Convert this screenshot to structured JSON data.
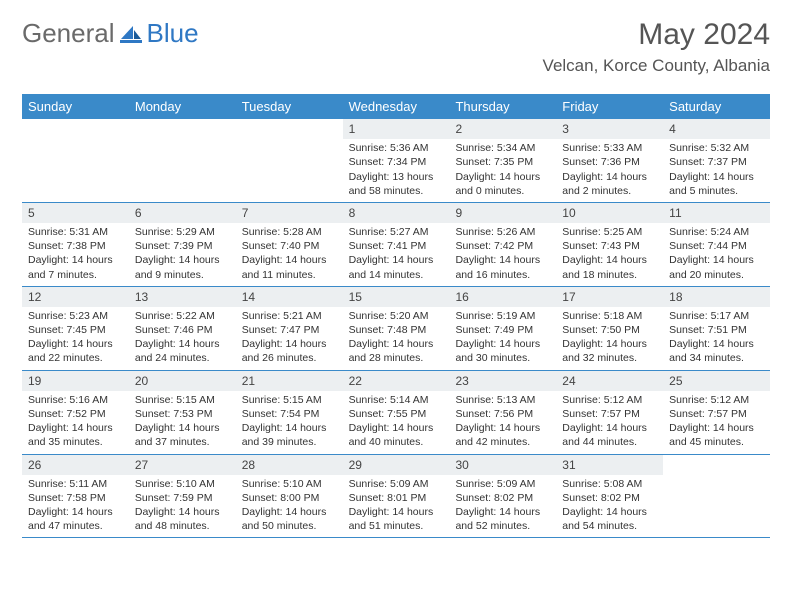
{
  "logo": {
    "general": "General",
    "blue": "Blue"
  },
  "header": {
    "title": "May 2024",
    "location": "Velcan, Korce County, Albania"
  },
  "colors": {
    "header_bg": "#3a8ac9",
    "header_text": "#ffffff",
    "daynum_bg": "#eceff1",
    "text": "#333333",
    "title_text": "#555555",
    "logo_gray": "#6a6a6a",
    "logo_blue": "#2f78c4",
    "divider": "#3a8ac9",
    "page_bg": "#ffffff"
  },
  "weekdays": [
    "Sunday",
    "Monday",
    "Tuesday",
    "Wednesday",
    "Thursday",
    "Friday",
    "Saturday"
  ],
  "weeks": [
    [
      {
        "n": "",
        "sr": "",
        "ss": "",
        "dl": ""
      },
      {
        "n": "",
        "sr": "",
        "ss": "",
        "dl": ""
      },
      {
        "n": "",
        "sr": "",
        "ss": "",
        "dl": ""
      },
      {
        "n": "1",
        "sr": "Sunrise: 5:36 AM",
        "ss": "Sunset: 7:34 PM",
        "dl": "Daylight: 13 hours and 58 minutes."
      },
      {
        "n": "2",
        "sr": "Sunrise: 5:34 AM",
        "ss": "Sunset: 7:35 PM",
        "dl": "Daylight: 14 hours and 0 minutes."
      },
      {
        "n": "3",
        "sr": "Sunrise: 5:33 AM",
        "ss": "Sunset: 7:36 PM",
        "dl": "Daylight: 14 hours and 2 minutes."
      },
      {
        "n": "4",
        "sr": "Sunrise: 5:32 AM",
        "ss": "Sunset: 7:37 PM",
        "dl": "Daylight: 14 hours and 5 minutes."
      }
    ],
    [
      {
        "n": "5",
        "sr": "Sunrise: 5:31 AM",
        "ss": "Sunset: 7:38 PM",
        "dl": "Daylight: 14 hours and 7 minutes."
      },
      {
        "n": "6",
        "sr": "Sunrise: 5:29 AM",
        "ss": "Sunset: 7:39 PM",
        "dl": "Daylight: 14 hours and 9 minutes."
      },
      {
        "n": "7",
        "sr": "Sunrise: 5:28 AM",
        "ss": "Sunset: 7:40 PM",
        "dl": "Daylight: 14 hours and 11 minutes."
      },
      {
        "n": "8",
        "sr": "Sunrise: 5:27 AM",
        "ss": "Sunset: 7:41 PM",
        "dl": "Daylight: 14 hours and 14 minutes."
      },
      {
        "n": "9",
        "sr": "Sunrise: 5:26 AM",
        "ss": "Sunset: 7:42 PM",
        "dl": "Daylight: 14 hours and 16 minutes."
      },
      {
        "n": "10",
        "sr": "Sunrise: 5:25 AM",
        "ss": "Sunset: 7:43 PM",
        "dl": "Daylight: 14 hours and 18 minutes."
      },
      {
        "n": "11",
        "sr": "Sunrise: 5:24 AM",
        "ss": "Sunset: 7:44 PM",
        "dl": "Daylight: 14 hours and 20 minutes."
      }
    ],
    [
      {
        "n": "12",
        "sr": "Sunrise: 5:23 AM",
        "ss": "Sunset: 7:45 PM",
        "dl": "Daylight: 14 hours and 22 minutes."
      },
      {
        "n": "13",
        "sr": "Sunrise: 5:22 AM",
        "ss": "Sunset: 7:46 PM",
        "dl": "Daylight: 14 hours and 24 minutes."
      },
      {
        "n": "14",
        "sr": "Sunrise: 5:21 AM",
        "ss": "Sunset: 7:47 PM",
        "dl": "Daylight: 14 hours and 26 minutes."
      },
      {
        "n": "15",
        "sr": "Sunrise: 5:20 AM",
        "ss": "Sunset: 7:48 PM",
        "dl": "Daylight: 14 hours and 28 minutes."
      },
      {
        "n": "16",
        "sr": "Sunrise: 5:19 AM",
        "ss": "Sunset: 7:49 PM",
        "dl": "Daylight: 14 hours and 30 minutes."
      },
      {
        "n": "17",
        "sr": "Sunrise: 5:18 AM",
        "ss": "Sunset: 7:50 PM",
        "dl": "Daylight: 14 hours and 32 minutes."
      },
      {
        "n": "18",
        "sr": "Sunrise: 5:17 AM",
        "ss": "Sunset: 7:51 PM",
        "dl": "Daylight: 14 hours and 34 minutes."
      }
    ],
    [
      {
        "n": "19",
        "sr": "Sunrise: 5:16 AM",
        "ss": "Sunset: 7:52 PM",
        "dl": "Daylight: 14 hours and 35 minutes."
      },
      {
        "n": "20",
        "sr": "Sunrise: 5:15 AM",
        "ss": "Sunset: 7:53 PM",
        "dl": "Daylight: 14 hours and 37 minutes."
      },
      {
        "n": "21",
        "sr": "Sunrise: 5:15 AM",
        "ss": "Sunset: 7:54 PM",
        "dl": "Daylight: 14 hours and 39 minutes."
      },
      {
        "n": "22",
        "sr": "Sunrise: 5:14 AM",
        "ss": "Sunset: 7:55 PM",
        "dl": "Daylight: 14 hours and 40 minutes."
      },
      {
        "n": "23",
        "sr": "Sunrise: 5:13 AM",
        "ss": "Sunset: 7:56 PM",
        "dl": "Daylight: 14 hours and 42 minutes."
      },
      {
        "n": "24",
        "sr": "Sunrise: 5:12 AM",
        "ss": "Sunset: 7:57 PM",
        "dl": "Daylight: 14 hours and 44 minutes."
      },
      {
        "n": "25",
        "sr": "Sunrise: 5:12 AM",
        "ss": "Sunset: 7:57 PM",
        "dl": "Daylight: 14 hours and 45 minutes."
      }
    ],
    [
      {
        "n": "26",
        "sr": "Sunrise: 5:11 AM",
        "ss": "Sunset: 7:58 PM",
        "dl": "Daylight: 14 hours and 47 minutes."
      },
      {
        "n": "27",
        "sr": "Sunrise: 5:10 AM",
        "ss": "Sunset: 7:59 PM",
        "dl": "Daylight: 14 hours and 48 minutes."
      },
      {
        "n": "28",
        "sr": "Sunrise: 5:10 AM",
        "ss": "Sunset: 8:00 PM",
        "dl": "Daylight: 14 hours and 50 minutes."
      },
      {
        "n": "29",
        "sr": "Sunrise: 5:09 AM",
        "ss": "Sunset: 8:01 PM",
        "dl": "Daylight: 14 hours and 51 minutes."
      },
      {
        "n": "30",
        "sr": "Sunrise: 5:09 AM",
        "ss": "Sunset: 8:02 PM",
        "dl": "Daylight: 14 hours and 52 minutes."
      },
      {
        "n": "31",
        "sr": "Sunrise: 5:08 AM",
        "ss": "Sunset: 8:02 PM",
        "dl": "Daylight: 14 hours and 54 minutes."
      },
      {
        "n": "",
        "sr": "",
        "ss": "",
        "dl": ""
      }
    ]
  ]
}
